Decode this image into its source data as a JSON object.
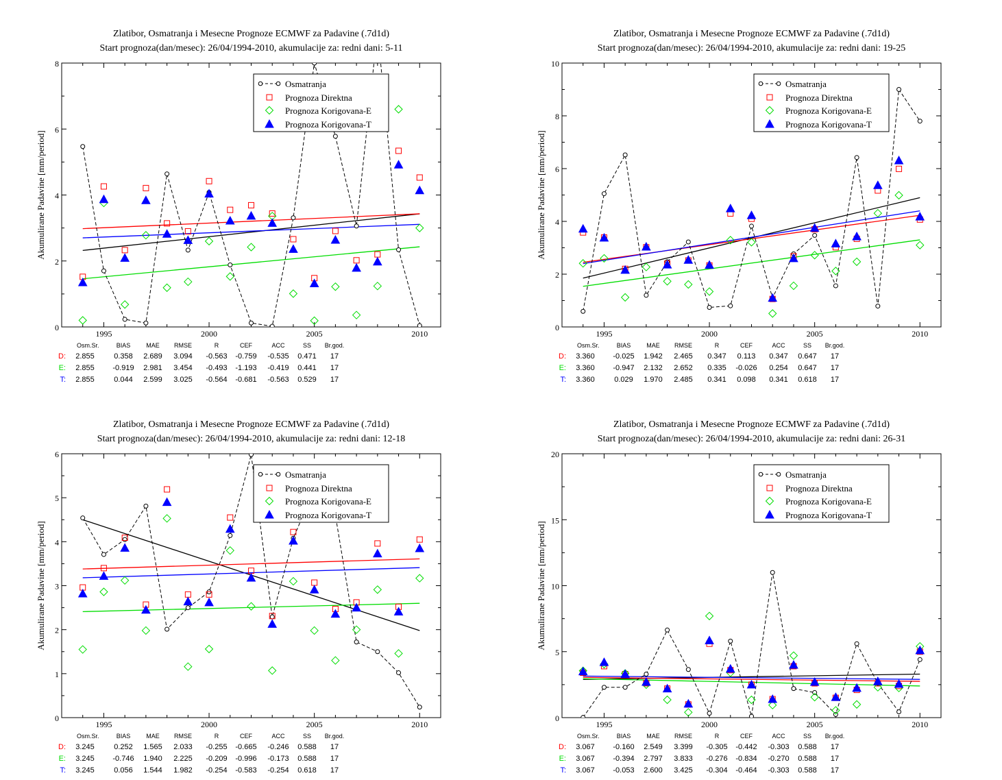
{
  "legend_labels": [
    "Osmatranja",
    "Prognoza Direktna",
    "Prognoza Korigovana-E",
    "Prognoza Korigovana-T"
  ],
  "colors": {
    "obs": "#000000",
    "direct": "#ff0000",
    "corr_e": "#00dd00",
    "corr_t": "#0000ff"
  },
  "stats_headers": [
    "Osm.Sr.",
    "BIAS",
    "MAE",
    "RMSE",
    "R",
    "CEF",
    "ACC",
    "SS",
    "Br.god."
  ],
  "chart_data": [
    {
      "type": "scatter",
      "title": "Zlatibor, Osmatranja i Mesecne Prognoze ECMWF za Padavine (.7d1d)",
      "subtitle": "Start prognoza(dan/mesec): 26/04/1994-2010, akumulacije za: redni dani: 5-11",
      "ylabel": "Akumulirane Padavine [mm/period]",
      "xlim": [
        1993,
        2011
      ],
      "ylim": [
        0,
        8
      ],
      "xticks": [
        1995,
        2000,
        2005,
        2010
      ],
      "yticks": [
        0,
        2,
        4,
        6,
        8
      ],
      "legend_position": "top-right",
      "x": [
        1994,
        1995,
        1996,
        1997,
        1998,
        1999,
        2000,
        2001,
        2002,
        2003,
        2004,
        2005,
        2006,
        2007,
        2008,
        2009,
        2010
      ],
      "series": [
        {
          "name": "Osmatranja",
          "values": [
            5.47,
            1.7,
            0.23,
            0.12,
            4.64,
            2.33,
            4.08,
            1.88,
            0.12,
            0.02,
            3.31,
            8.0,
            5.78,
            3.06,
            9.0,
            2.34,
            0.04
          ]
        },
        {
          "name": "Prognoza Direktna",
          "values": [
            1.52,
            4.26,
            2.33,
            4.21,
            3.14,
            2.9,
            4.42,
            3.55,
            3.69,
            3.44,
            2.66,
            1.48,
            2.91,
            2.02,
            2.2,
            5.34,
            4.53
          ]
        },
        {
          "name": "Prognoza Korigovana-E",
          "values": [
            0.2,
            3.76,
            0.68,
            2.78,
            1.19,
            1.37,
            2.6,
            1.53,
            2.42,
            3.36,
            1.01,
            0.19,
            1.22,
            0.36,
            1.24,
            6.6,
            3.0
          ]
        },
        {
          "name": "Prognoza Korigovana-T",
          "values": [
            1.35,
            3.87,
            2.09,
            3.84,
            2.82,
            2.63,
            4.04,
            3.22,
            3.37,
            3.15,
            2.36,
            1.32,
            2.64,
            1.79,
            1.98,
            4.92,
            4.14
          ]
        }
      ],
      "trends": [
        {
          "series": "Osmatranja",
          "y_start": 2.32,
          "y_end": 3.43
        },
        {
          "series": "Prognoza Direktna",
          "y_start": 2.98,
          "y_end": 3.43
        },
        {
          "series": "Prognoza Korigovana-E",
          "y_start": 1.46,
          "y_end": 2.43
        },
        {
          "series": "Prognoza Korigovana-T",
          "y_start": 2.7,
          "y_end": 3.11
        }
      ],
      "stats": [
        {
          "label": "D:",
          "values": [
            "2.855",
            "0.358",
            "2.689",
            "3.094",
            "-0.563",
            "-0.759",
            "-0.535",
            "0.471",
            "17"
          ]
        },
        {
          "label": "E:",
          "values": [
            "2.855",
            "-0.919",
            "2.981",
            "3.454",
            "-0.493",
            "-1.193",
            "-0.419",
            "0.441",
            "17"
          ]
        },
        {
          "label": "T:",
          "values": [
            "2.855",
            "0.044",
            "2.599",
            "3.025",
            "-0.564",
            "-0.681",
            "-0.563",
            "0.529",
            "17"
          ]
        }
      ]
    },
    {
      "type": "scatter",
      "title": "Zlatibor, Osmatranja i Mesecne Prognoze ECMWF za Padavine (.7d1d)",
      "subtitle": "Start prognoza(dan/mesec): 26/04/1994-2010, akumulacije za: redni dani: 19-25",
      "ylabel": "Akumulirane Padavine [mm/period]",
      "xlim": [
        1993,
        2011
      ],
      "ylim": [
        0,
        10
      ],
      "xticks": [
        1995,
        2000,
        2005,
        2010
      ],
      "yticks": [
        0,
        2,
        4,
        6,
        8,
        10
      ],
      "legend_position": "top-right",
      "x": [
        1994,
        1995,
        1996,
        1997,
        1998,
        1999,
        2000,
        2001,
        2002,
        2003,
        2004,
        2005,
        2006,
        2007,
        2008,
        2009,
        2010
      ],
      "series": [
        {
          "name": "Osmatranja",
          "values": [
            0.59,
            5.05,
            6.52,
            1.2,
            2.47,
            3.22,
            0.74,
            0.8,
            3.82,
            1.1,
            2.77,
            3.47,
            1.56,
            6.42,
            0.79,
            9.0,
            7.8
          ]
        },
        {
          "name": "Prognoza Direktna",
          "values": [
            3.58,
            3.39,
            2.2,
            3.02,
            2.4,
            2.52,
            2.33,
            4.3,
            4.1,
            1.06,
            2.68,
            3.7,
            3.02,
            3.34,
            5.17,
            5.99,
            4.07
          ]
        },
        {
          "name": "Prognoza Korigovana-E",
          "values": [
            2.41,
            2.6,
            1.12,
            2.27,
            1.73,
            1.61,
            1.34,
            3.29,
            3.21,
            0.51,
            1.56,
            2.72,
            2.12,
            2.47,
            4.31,
            4.99,
            3.1
          ]
        },
        {
          "name": "Prognoza Korigovana-T",
          "values": [
            3.72,
            3.38,
            2.16,
            3.04,
            2.36,
            2.54,
            2.35,
            4.49,
            4.23,
            1.1,
            2.6,
            3.75,
            3.16,
            3.43,
            5.37,
            6.31,
            4.18
          ]
        }
      ],
      "trends": [
        {
          "series": "Osmatranja",
          "y_start": 1.85,
          "y_end": 4.9
        },
        {
          "series": "Prognoza Direktna",
          "y_start": 2.45,
          "y_end": 4.23
        },
        {
          "series": "Prognoza Korigovana-E",
          "y_start": 1.54,
          "y_end": 3.3
        },
        {
          "series": "Prognoza Korigovana-T",
          "y_start": 2.4,
          "y_end": 4.4
        }
      ],
      "stats": [
        {
          "label": "D:",
          "values": [
            "3.360",
            "-0.025",
            "1.942",
            "2.465",
            "0.347",
            "0.113",
            "0.347",
            "0.647",
            "17"
          ]
        },
        {
          "label": "E:",
          "values": [
            "3.360",
            "-0.947",
            "2.132",
            "2.652",
            "0.335",
            "-0.026",
            "0.254",
            "0.647",
            "17"
          ]
        },
        {
          "label": "T:",
          "values": [
            "3.360",
            "0.029",
            "1.970",
            "2.485",
            "0.341",
            "0.098",
            "0.341",
            "0.618",
            "17"
          ]
        }
      ]
    },
    {
      "type": "scatter",
      "title": "Zlatibor, Osmatranja i Mesecne Prognoze ECMWF za Padavine (.7d1d)",
      "subtitle": "Start prognoza(dan/mesec): 26/04/1994-2010, akumulacije za: redni dani: 12-18",
      "ylabel": "Akumulirane Padavine [mm/period]",
      "xlim": [
        1993,
        2011
      ],
      "ylim": [
        0,
        6
      ],
      "xticks": [
        1995,
        2000,
        2005,
        2010
      ],
      "yticks": [
        0,
        1,
        2,
        3,
        4,
        5,
        6
      ],
      "legend_position": "top-right",
      "x": [
        1994,
        1995,
        1996,
        1997,
        1998,
        1999,
        2000,
        2001,
        2002,
        2003,
        2004,
        2005,
        2006,
        2007,
        2008,
        2009,
        2010
      ],
      "series": [
        {
          "name": "Osmatranja",
          "values": [
            4.54,
            3.71,
            4.05,
            4.81,
            2.01,
            2.5,
            2.86,
            4.14,
            5.98,
            2.29,
            4.08,
            5.2,
            4.6,
            1.72,
            1.5,
            1.02,
            0.24
          ]
        },
        {
          "name": "Prognoza Direktna",
          "values": [
            2.96,
            3.4,
            4.09,
            2.57,
            5.19,
            2.8,
            2.8,
            4.55,
            3.34,
            2.31,
            4.22,
            3.07,
            2.47,
            2.62,
            3.96,
            2.52,
            4.05
          ]
        },
        {
          "name": "Prognoza Korigovana-E",
          "values": [
            1.55,
            2.86,
            3.12,
            1.98,
            4.53,
            1.16,
            1.56,
            3.8,
            2.53,
            1.07,
            3.1,
            1.98,
            1.3,
            2.0,
            2.91,
            1.46,
            3.17
          ]
        },
        {
          "name": "Prognoza Korigovana-T",
          "values": [
            2.82,
            3.22,
            3.86,
            2.45,
            4.9,
            2.64,
            2.62,
            4.29,
            3.18,
            2.13,
            4.02,
            2.91,
            2.36,
            2.5,
            3.73,
            2.41,
            3.85
          ]
        }
      ],
      "trends": [
        {
          "series": "Osmatranja",
          "y_start": 4.5,
          "y_end": 1.98
        },
        {
          "series": "Prognoza Direktna",
          "y_start": 3.38,
          "y_end": 3.61
        },
        {
          "series": "Prognoza Korigovana-E",
          "y_start": 2.41,
          "y_end": 2.6
        },
        {
          "series": "Prognoza Korigovana-T",
          "y_start": 3.18,
          "y_end": 3.41
        }
      ],
      "stats": [
        {
          "label": "D:",
          "values": [
            "3.245",
            "0.252",
            "1.565",
            "2.033",
            "-0.255",
            "-0.665",
            "-0.246",
            "0.588",
            "17"
          ]
        },
        {
          "label": "E:",
          "values": [
            "3.245",
            "-0.746",
            "1.940",
            "2.225",
            "-0.209",
            "-0.996",
            "-0.173",
            "0.588",
            "17"
          ]
        },
        {
          "label": "T:",
          "values": [
            "3.245",
            "0.056",
            "1.544",
            "1.982",
            "-0.254",
            "-0.583",
            "-0.254",
            "0.618",
            "17"
          ]
        }
      ]
    },
    {
      "type": "scatter",
      "title": "Zlatibor, Osmatranja i Mesecne Prognoze ECMWF za Padavine (.7d1d)",
      "subtitle": "Start prognoza(dan/mesec): 26/04/1994-2010, akumulacije za: redni dani: 26-31",
      "ylabel": "Akumulirane Padavine [mm/period]",
      "xlim": [
        1993,
        2011
      ],
      "ylim": [
        0,
        20
      ],
      "xticks": [
        1995,
        2000,
        2005,
        2010
      ],
      "yticks": [
        0,
        5,
        10,
        15,
        20
      ],
      "legend_position": "top-right",
      "x": [
        1994,
        1995,
        1996,
        1997,
        1998,
        1999,
        2000,
        2001,
        2002,
        2003,
        2004,
        2005,
        2006,
        2007,
        2008,
        2009,
        2010
      ],
      "series": [
        {
          "name": "Osmatranja",
          "values": [
            0.01,
            2.3,
            2.3,
            3.3,
            6.64,
            3.65,
            0.33,
            5.8,
            0.1,
            11.0,
            2.2,
            1.9,
            0.24,
            5.6,
            2.6,
            0.44,
            4.4
          ]
        },
        {
          "name": "Prognoza Direktna",
          "values": [
            3.4,
            3.9,
            3.3,
            2.6,
            2.2,
            1.0,
            5.6,
            3.6,
            2.5,
            1.4,
            3.9,
            2.6,
            1.5,
            2.1,
            2.6,
            2.4,
            5.0
          ]
        },
        {
          "name": "Prognoza Korigovana-E",
          "values": [
            3.55,
            4.05,
            3.35,
            2.5,
            1.35,
            0.4,
            7.7,
            3.4,
            1.35,
            0.95,
            4.7,
            1.55,
            0.55,
            1.0,
            2.3,
            2.25,
            5.4
          ]
        },
        {
          "name": "Prognoza Korigovana-T",
          "values": [
            3.5,
            4.2,
            3.3,
            2.7,
            2.2,
            1.05,
            5.85,
            3.7,
            2.5,
            1.4,
            4.0,
            2.7,
            1.55,
            2.25,
            2.75,
            2.55,
            5.1
          ]
        }
      ],
      "trends": [
        {
          "series": "Osmatranja",
          "y_start": 2.9,
          "y_end": 3.3
        },
        {
          "series": "Prognoza Direktna",
          "y_start": 3.05,
          "y_end": 2.75
        },
        {
          "series": "Prognoza Korigovana-E",
          "y_start": 2.95,
          "y_end": 2.4
        },
        {
          "series": "Prognoza Korigovana-T",
          "y_start": 3.15,
          "y_end": 2.9
        }
      ],
      "stats": [
        {
          "label": "D:",
          "values": [
            "3.067",
            "-0.160",
            "2.549",
            "3.399",
            "-0.305",
            "-0.442",
            "-0.303",
            "0.588",
            "17"
          ]
        },
        {
          "label": "E:",
          "values": [
            "3.067",
            "-0.394",
            "2.797",
            "3.833",
            "-0.276",
            "-0.834",
            "-0.270",
            "0.588",
            "17"
          ]
        },
        {
          "label": "T:",
          "values": [
            "3.067",
            "-0.053",
            "2.600",
            "3.425",
            "-0.304",
            "-0.464",
            "-0.303",
            "0.588",
            "17"
          ]
        }
      ]
    }
  ]
}
